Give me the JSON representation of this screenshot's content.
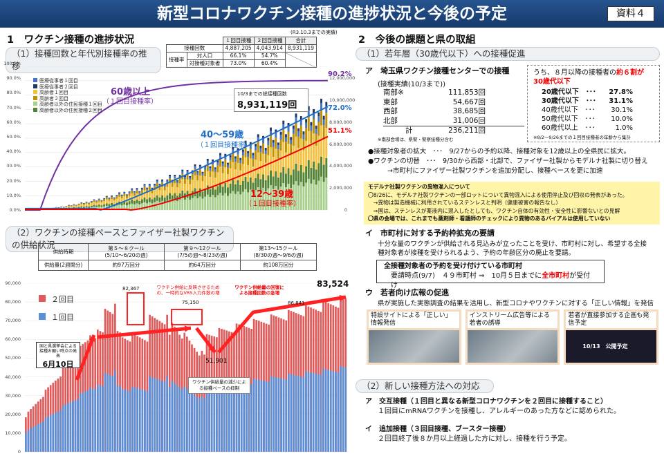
{
  "banner": {
    "title": "新型コロナワクチン接種の進捗状況と今後の予定",
    "doc_label": "資料４"
  },
  "left": {
    "section1": {
      "heading": "1　ワクチン接種の進捗状況",
      "sub1": "（1）接種回数と年代別接種率の推移"
    },
    "stats": {
      "note": "(R3.10.3までの実績)",
      "col1": "１回目接種",
      "col2": "２回目接種",
      "col3": "合計",
      "row1": {
        "label": "接種回数",
        "v1": "4,887,205",
        "v2": "4,043,914",
        "v3": "8,931,119"
      },
      "grp": "接種率",
      "row2": {
        "label": "対人口",
        "v1": "66.1%",
        "v2": "54.7%"
      },
      "row3": {
        "label": "対接種対象者",
        "v1": "73.0%",
        "v2": "60.4%"
      }
    },
    "chart1": {
      "yticks": [
        "100.0%",
        "90.0%",
        "80.0%",
        "70.0%",
        "60.0%",
        "50.0%",
        "40.0%",
        "30.0%",
        "20.0%",
        "10.0%",
        "0.0%"
      ],
      "y2ticks": [
        "12,000,000",
        "10,000,000",
        "8,000,000",
        "6,000,000",
        "4,000,000",
        "2,000,000",
        "0"
      ],
      "legend": [
        "医療従事者１回目",
        "医療従事者２回目",
        "高齢者１回目",
        "高齢者２回目",
        "高齢者以外の住民接種１回目",
        "高齢者以外の住民接種２回目"
      ],
      "label60": "60歳以上",
      "label60sub": "（１回目接種率）",
      "label40": "40～59歳",
      "label40sub": "（１回目接種率）",
      "label12": "12～39歳",
      "label12sub": "（１回目接種率）",
      "callout_title": "10/3までの総接種回数",
      "callout_value": "8,931,119回",
      "end60": "90.2%",
      "end40": "72.0%",
      "end12": "51.1%"
    },
    "sub2": "（2）ワクチンの接種ペースとファイザー社製ワクチンの供給状況",
    "supply": {
      "h0": "供給時期",
      "h1": "第５～８クール\n(5/10～6/20の週)",
      "h2": "第９～12クール\n(7/5の週～8/23の週)",
      "h3": "第13～15クール\n(8/30の週～9/6の週)",
      "r0": "供給量(2週間分)",
      "v1": "約97万回分",
      "v2": "約64万回分",
      "v3": "約108万回分"
    },
    "chart2": {
      "yticks": [
        "90,000",
        "80,000",
        "70,000",
        "60,000",
        "50,000",
        "40,000",
        "30,000",
        "20,000",
        "10,000",
        "0"
      ],
      "legend2": "２回目",
      "legend1": "１回目",
      "peak1": "82,367",
      "peak2": "75,150",
      "low": "51,901",
      "peak3": "86,841",
      "last": "83,524",
      "note1": "ワクチン供給に反映させるための、一時的なVRS入力件数の増",
      "note2": "ワクチン供給量の回復による接種回数の急増",
      "note3": "ワクチン供給量の減少による接種ペースの抑制",
      "date_note": "国と県選挙会による接種お願い時点の発表",
      "date": "6月10日"
    }
  },
  "right": {
    "heading": "2　今後の課題と県の取組",
    "sub1": "（1）若年層（30歳代以下）への接種促進",
    "a_title": "ア　埼玉県ワクチン接種センターでの接種",
    "a_sub": "(接種実績(10/3まで))",
    "centers": [
      {
        "name": "南部",
        "note": "※",
        "value": "111,853回"
      },
      {
        "name": "東部",
        "note": "",
        "value": "54,667回"
      },
      {
        "name": "西部",
        "note": "",
        "value": "38,685回"
      },
      {
        "name": "北部",
        "note": "",
        "value": "31,006回"
      },
      {
        "name": "計",
        "note": "",
        "value": "236,211回"
      }
    ],
    "center_note": "※南部会場は、県警・警察接種分含む",
    "age": {
      "lead": "うち、８月以降の接種者の",
      "lead_red": "約６割が",
      "lead2": "30歳代以下",
      "rows": [
        {
          "label": "20歳代以下",
          "value": "27.8%"
        },
        {
          "label": "30歳代以下",
          "value": "31.1%"
        },
        {
          "label": "40歳代以下",
          "value": "30.1%"
        },
        {
          "label": "50歳代以下",
          "value": "10.0%"
        },
        {
          "label": "60歳代以上",
          "value": "1.0%"
        }
      ],
      "note": "※8/2～9/26までの１回目接種者の年齢から集計"
    },
    "bullet1": "●接種対象者の拡大　･･･　9/27からの予約以降、接種対象を12歳以上の全県民に拡大。",
    "bullet2": "●ワクチンの切替　･･･　9/30から西部・北部で、ファイザー社製からモデルナ社製に切り替え",
    "bullet2b": "→市町村にファイザー社製ワクチンを追加分配し、接種ベースを更に加速",
    "yellow": {
      "title": "モデルナ社製ワクチンの異物混入について",
      "l1": "〇8/26に、モデルナ社製ワクチンの一部ロットについて異物混入による使用停止及び回収の発表があった。",
      "l2": "　→異物は製造機械に利用されているステンレスと判明（健康被害の報告なし）",
      "l3": "　⇒国は、ステンレスが薬液内に混入したとしても、ワクチン自体の有効性・安全性に影響ないとの見解",
      "l4": "〇県の会場では、これまでも薬剤師・看護師のチェックにより異物のあるバイアルは使用していない"
    },
    "i_title": "イ　市町村に対する予約枠拡充の要請",
    "i_l1": "十分な量のワクチンが供給される見込みが立ったことを受け、市町村に対し、希望する全接",
    "i_l2": "種対象者が接種を受けられるよう、予約の年齢区分の廃止を要請。",
    "i_box_title": "全接種対象者の予約を受け付けている市町村",
    "i_box_l1": "要請時点(9/7)　４９市町村 ⇒　10月５日までに",
    "i_box_red": "全市町村",
    "i_box_end": "が受付け",
    "u_title": "ウ　若者向け広報の促進",
    "u_l1": "県が実施した実態調査の結果を活用し、新型コロナやワクチンに対する「正しい情報」を発信",
    "cards": [
      {
        "title": "特設サイトによる「正しい」情報発信"
      },
      {
        "title": "インストリーム広告等による若者の誘導"
      },
      {
        "title": "若者が直接参加する企画も発信予定",
        "badge": "10/13　公開予定"
      }
    ],
    "sub2": "（2）新しい接種方法への対応",
    "cross_title": "ア　交互接種（１回目と異なる新型コロナワクチンを２回目に接種すること）",
    "cross_l1": "１回目にmRNAワクチンを接種し、アレルギーのあった方などに認められた。",
    "booster_title": "イ　追加接種（３回目接種、ブースター接種）",
    "booster_l1": "２回目終了後８か月以上経過した方に対し、接種を行う予定。"
  }
}
